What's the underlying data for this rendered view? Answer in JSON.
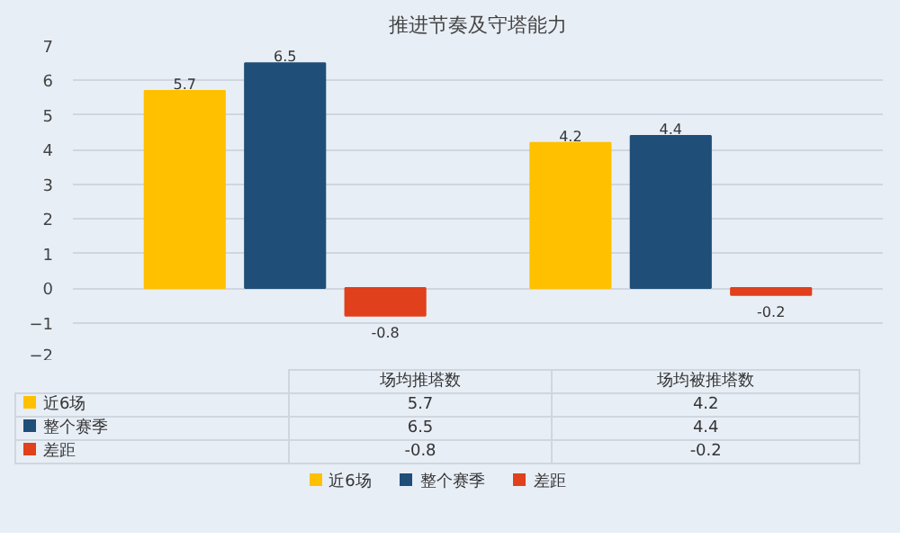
{
  "chart_data": {
    "type": "bar",
    "title": "推进节奏及守塔能力",
    "categories": [
      "场均推塔数",
      "场均被推塔数"
    ],
    "series": [
      {
        "name": "近6场",
        "color": "#ffc000",
        "values": [
          5.7,
          4.2
        ]
      },
      {
        "name": "整个赛季",
        "color": "#1f4e79",
        "values": [
          6.5,
          4.4
        ]
      },
      {
        "name": "差距",
        "color": "#e0401c",
        "values": [
          -0.8,
          -0.2
        ]
      }
    ],
    "annotations": [
      "5.7",
      "6.5",
      "-0.8",
      "4.2",
      "4.4",
      "-0.2"
    ],
    "ylim": [
      -2,
      7
    ],
    "yticks": [
      -2,
      -1,
      0,
      1,
      2,
      3,
      4,
      5,
      6,
      7
    ],
    "grid": "y",
    "data_labels": true,
    "legend": "bottom"
  }
}
